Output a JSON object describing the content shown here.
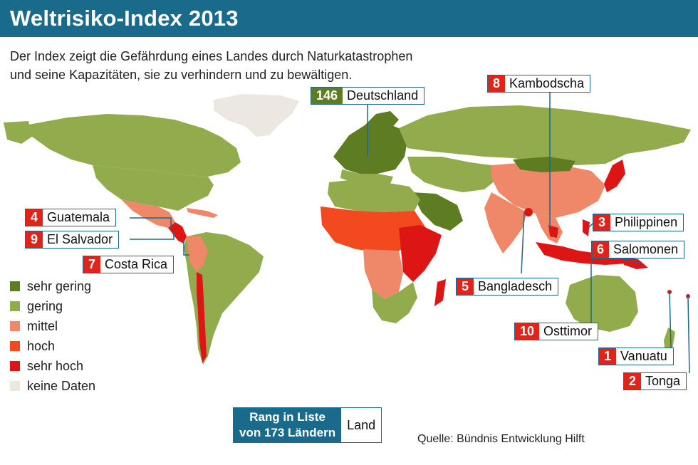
{
  "title": "Weltrisiko-Index 2013",
  "subtitle_line1": "Der Index zeigt die Gefährdung eines Landes durch Naturkatastrophen",
  "subtitle_line2": "und seine Kapazitäten, sie zu verhindern und zu bewältigen.",
  "colors": {
    "header": "#1a6a8c",
    "sehr_gering": "#5e7d22",
    "gering": "#92ab4c",
    "mittel": "#ef8868",
    "hoch": "#f2491f",
    "sehr_hoch": "#dd1515",
    "keine_daten": "#ece7e1"
  },
  "callouts": [
    {
      "rank": "146",
      "name": "Deutschland",
      "class": "sehr_gering"
    },
    {
      "rank": "8",
      "name": "Kambodscha",
      "class": "sehr_hoch"
    },
    {
      "rank": "4",
      "name": "Guatemala",
      "class": "sehr_hoch"
    },
    {
      "rank": "9",
      "name": "El Salvador",
      "class": "sehr_hoch"
    },
    {
      "rank": "7",
      "name": "Costa Rica",
      "class": "sehr_hoch"
    },
    {
      "rank": "3",
      "name": "Philippinen",
      "class": "sehr_hoch"
    },
    {
      "rank": "6",
      "name": "Salomonen",
      "class": "sehr_hoch"
    },
    {
      "rank": "5",
      "name": "Bangladesch",
      "class": "sehr_hoch"
    },
    {
      "rank": "10",
      "name": "Osttimor",
      "class": "sehr_hoch"
    },
    {
      "rank": "1",
      "name": "Vanuatu",
      "class": "sehr_hoch"
    },
    {
      "rank": "2",
      "name": "Tonga",
      "class": "sehr_hoch"
    }
  ],
  "legend": [
    {
      "label": "sehr gering",
      "color": "#5e7d22"
    },
    {
      "label": "gering",
      "color": "#92ab4c"
    },
    {
      "label": "mittel",
      "color": "#ef8868"
    },
    {
      "label": "hoch",
      "color": "#f2491f"
    },
    {
      "label": "sehr hoch",
      "color": "#dd1515"
    },
    {
      "label": "keine Daten",
      "color": "#ece7e1"
    }
  ],
  "rank_box": {
    "line1": "Rang in Liste",
    "line2": "von 173 Ländern",
    "land": "Land"
  },
  "source": "Quelle: Bündnis Entwicklung Hilft"
}
